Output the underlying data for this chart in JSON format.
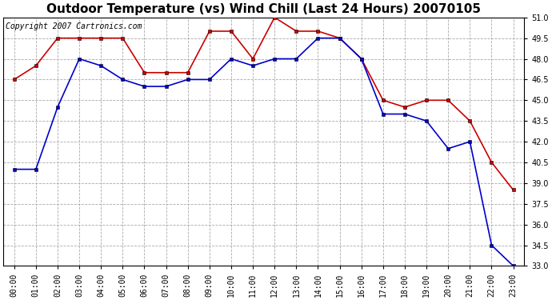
{
  "title": "Outdoor Temperature (vs) Wind Chill (Last 24 Hours) 20070105",
  "copyright": "Copyright 2007 Cartronics.com",
  "x_labels": [
    "00:00",
    "01:00",
    "02:00",
    "03:00",
    "04:00",
    "05:00",
    "06:00",
    "07:00",
    "08:00",
    "09:00",
    "10:00",
    "11:00",
    "12:00",
    "13:00",
    "14:00",
    "15:00",
    "16:00",
    "17:00",
    "18:00",
    "19:00",
    "20:00",
    "21:00",
    "22:00",
    "23:00"
  ],
  "outdoor_temp": [
    46.5,
    47.5,
    49.5,
    49.5,
    49.5,
    49.5,
    47.0,
    47.0,
    47.0,
    50.0,
    50.0,
    48.0,
    51.0,
    50.0,
    50.0,
    49.5,
    48.0,
    45.0,
    44.5,
    45.0,
    45.0,
    43.5,
    40.5,
    38.5
  ],
  "wind_chill": [
    40.0,
    40.0,
    44.5,
    48.0,
    47.5,
    46.5,
    46.0,
    46.0,
    46.5,
    46.5,
    48.0,
    47.5,
    48.0,
    48.0,
    49.5,
    49.5,
    48.0,
    44.0,
    44.0,
    43.5,
    41.5,
    42.0,
    34.5,
    33.0
  ],
  "temp_color": "#cc0000",
  "chill_color": "#0000cc",
  "fig_bg_color": "#ffffff",
  "plot_bg_color": "#ffffff",
  "grid_color": "#aaaaaa",
  "y_min": 33.0,
  "y_max": 51.0,
  "y_ticks": [
    33.0,
    34.5,
    36.0,
    37.5,
    39.0,
    40.5,
    42.0,
    43.5,
    45.0,
    46.5,
    48.0,
    49.5,
    51.0
  ],
  "title_fontsize": 11,
  "tick_fontsize": 7,
  "copyright_fontsize": 7,
  "marker": "s",
  "marker_size": 3,
  "line_width": 1.2
}
